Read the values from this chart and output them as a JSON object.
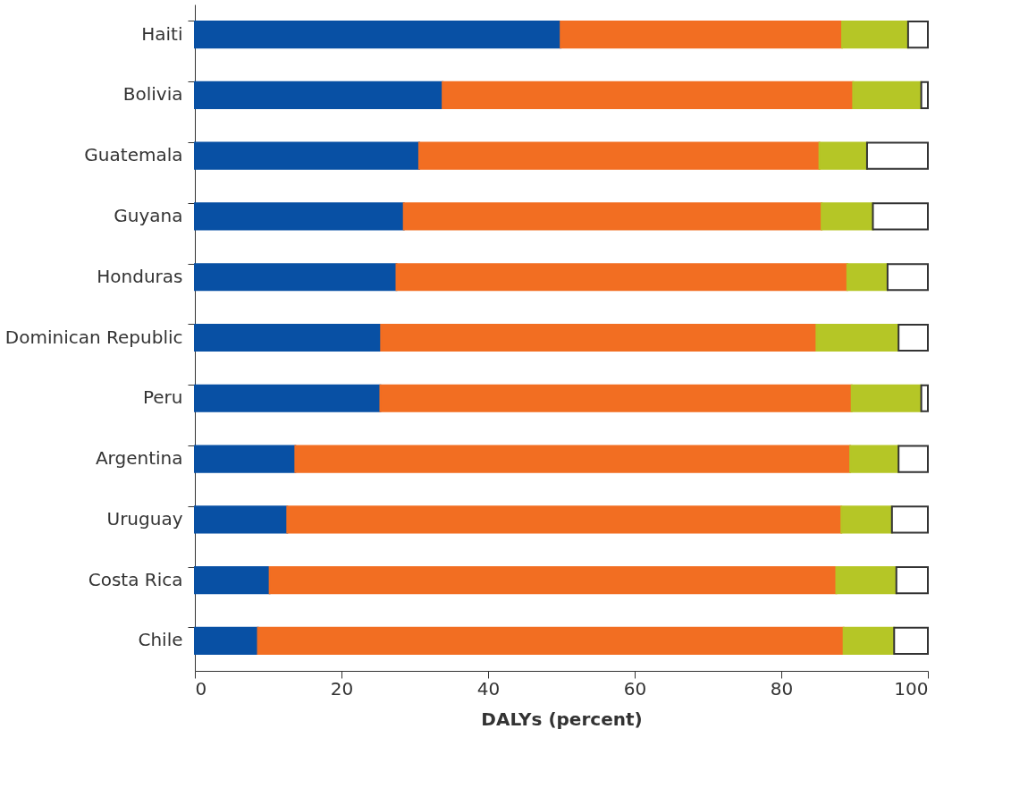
{
  "chart_data": {
    "type": "bar",
    "orientation": "horizontal",
    "stacked": true,
    "xlabel": "DALYs (percent)",
    "categories": [
      "Haiti",
      "Bolivia",
      "Guatemala",
      "Guyana",
      "Honduras",
      "Dominican Republic",
      "Peru",
      "Argentina",
      "Uruguay",
      "Costa Rica",
      "Chile"
    ],
    "series": [
      {
        "color": "#0850a4",
        "values": [
          49.9,
          33.8,
          30.6,
          28.5,
          27.5,
          25.4,
          25.3,
          13.7,
          12.6,
          10.2,
          8.6
        ]
      },
      {
        "color": "#f26e22",
        "values": [
          38.4,
          56.0,
          54.6,
          57.0,
          61.5,
          59.4,
          64.3,
          75.7,
          75.6,
          77.3,
          79.9
        ]
      },
      {
        "color": "#b5c626",
        "values": [
          9.0,
          9.3,
          6.5,
          7.0,
          5.5,
          11.2,
          9.5,
          6.6,
          6.9,
          8.2,
          6.9
        ]
      },
      {
        "color": "#ffffff",
        "values": [
          2.7,
          0.9,
          8.3,
          7.5,
          5.5,
          4.0,
          0.9,
          4.0,
          4.9,
          4.3,
          4.6
        ]
      }
    ],
    "xlim": [
      0,
      100
    ],
    "xticks": [
      0,
      20,
      40,
      60,
      80,
      100
    ],
    "grid": false,
    "legend": false
  }
}
